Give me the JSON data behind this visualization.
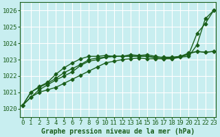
{
  "title": "Graphe pression niveau de la mer (hPa)",
  "background_color": "#c8eef0",
  "grid_color": "#ffffff",
  "line_color": "#1a5e1a",
  "xlim": [
    -0.3,
    23.3
  ],
  "ylim": [
    1019.5,
    1026.5
  ],
  "yticks": [
    1020,
    1021,
    1022,
    1023,
    1024,
    1025,
    1026
  ],
  "xticks": [
    0,
    1,
    2,
    3,
    4,
    5,
    6,
    7,
    8,
    9,
    10,
    11,
    12,
    13,
    14,
    15,
    16,
    17,
    18,
    19,
    20,
    21,
    22,
    23
  ],
  "series": [
    [
      1020.2,
      1020.7,
      1021.0,
      1021.15,
      1021.3,
      1021.55,
      1021.8,
      1022.05,
      1022.3,
      1022.55,
      1022.8,
      1022.9,
      1023.0,
      1023.05,
      1023.1,
      1023.05,
      1023.05,
      1023.05,
      1023.1,
      1023.15,
      1023.2,
      1023.9,
      1025.5,
      1026.0
    ],
    [
      1020.2,
      1020.7,
      1021.15,
      1021.45,
      1021.75,
      1022.0,
      1022.25,
      1022.65,
      1022.9,
      1023.0,
      1023.15,
      1023.2,
      1023.2,
      1023.2,
      1023.2,
      1023.2,
      1023.15,
      1023.15,
      1023.15,
      1023.2,
      1023.3,
      1024.6,
      1025.2,
      1026.0
    ],
    [
      1020.2,
      1021.0,
      1021.3,
      1021.55,
      1021.85,
      1022.2,
      1022.45,
      1022.7,
      1023.0,
      1023.1,
      1023.15,
      1023.2,
      1023.2,
      1023.2,
      1023.2,
      1023.2,
      1023.1,
      1023.05,
      1023.05,
      1023.15,
      1023.35,
      1023.5,
      1023.45,
      1023.5
    ],
    [
      1020.2,
      1021.0,
      1021.35,
      1021.6,
      1022.1,
      1022.5,
      1022.8,
      1023.05,
      1023.2,
      1023.2,
      1023.25,
      1023.2,
      1023.2,
      1023.3,
      1023.25,
      1023.3,
      1023.2,
      1023.1,
      1023.1,
      1023.2,
      1023.4,
      1023.5,
      1023.45,
      1023.5
    ]
  ],
  "marker": "D",
  "marker_size": 2.5,
  "line_width": 1.0,
  "font_color": "#1a5e1a",
  "font_size": 7,
  "font_family": "monospace",
  "ylabel_fontsize": 6.5,
  "xlabel_fontsize": 6.5
}
